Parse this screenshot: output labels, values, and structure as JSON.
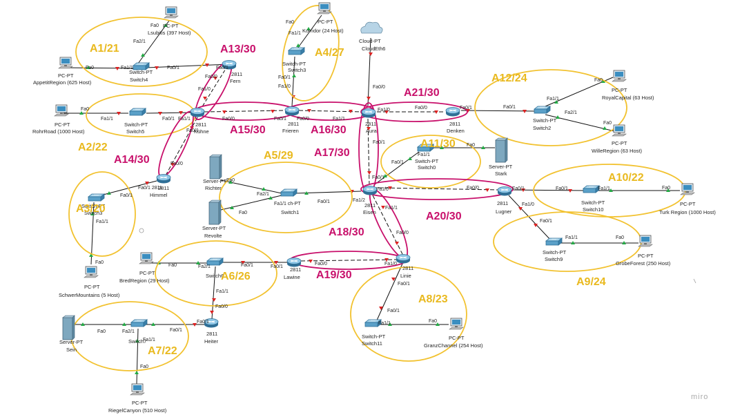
{
  "watermark": "miro",
  "colors": {
    "area_yellow": "#f2c230",
    "area_pink": "#c8106b",
    "area_label_yellow": "#e9b91e",
    "area_label_pink": "#c8106b",
    "link": "#111111",
    "port_up": "#22aa44",
    "port_down": "#dd2222"
  },
  "areas": [
    {
      "label": "A1/21"
    },
    {
      "label": "A2/22"
    },
    {
      "label": "A3/20"
    },
    {
      "label": "A4/27"
    },
    {
      "label": "A5/29"
    },
    {
      "label": "A6/26"
    },
    {
      "label": "A7/22"
    },
    {
      "label": "A8/23"
    },
    {
      "label": "A9/24"
    },
    {
      "label": "A10/22"
    },
    {
      "label": "A11/30"
    },
    {
      "label": "A12/24"
    },
    {
      "label": "A13/30"
    },
    {
      "label": "A14/30"
    },
    {
      "label": "A15/30"
    },
    {
      "label": "A16/30"
    },
    {
      "label": "A17/30"
    },
    {
      "label": "A18/30"
    },
    {
      "label": "A19/30"
    },
    {
      "label": "A20/30"
    },
    {
      "label": "A21/30"
    }
  ],
  "devices": {
    "fern": {
      "model": "2811",
      "name": "Fern",
      "icon": "router-icon"
    },
    "kuehne": {
      "model": "2811",
      "name": "Kühne",
      "icon": "router-icon"
    },
    "frieren": {
      "model": "2811",
      "name": "Frieren",
      "icon": "router-icon"
    },
    "aura": {
      "model": "2811",
      "name": "Aura",
      "icon": "router-icon"
    },
    "denken": {
      "model": "2811",
      "name": "Denken",
      "icon": "router-icon"
    },
    "himmel": {
      "model": "2811",
      "name": "Himmel",
      "icon": "router-icon"
    },
    "eisen": {
      "model": "2811",
      "name": "Eisen",
      "icon": "router-icon"
    },
    "lugner": {
      "model": "2811",
      "name": "Lugner",
      "icon": "router-icon"
    },
    "linie": {
      "model": "2811",
      "name": "Linie",
      "icon": "router-icon"
    },
    "lawine": {
      "model": "2811",
      "name": "Lawine",
      "icon": "router-icon"
    },
    "heiter": {
      "model": "2811",
      "name": "Heiter",
      "icon": "router-icon"
    },
    "switch0": {
      "type": "Switch-PT",
      "name": "Switch0",
      "icon": "switch-icon"
    },
    "switch1": {
      "type": "Switch-PT",
      "name": "Switch1",
      "icon": "switch-icon"
    },
    "switch2": {
      "type": "Switch-PT",
      "name": "Switch2",
      "icon": "switch-icon"
    },
    "switch3": {
      "type": "Switch-PT",
      "name": "Switch3",
      "icon": "switch-icon"
    },
    "switch3b": {
      "type": "Switch-PT",
      "name": "Switch3",
      "icon": "switch-icon"
    },
    "switch4": {
      "type": "Switch-PT",
      "name": "Switch4",
      "icon": "switch-icon"
    },
    "switch5": {
      "type": "Switch-PT",
      "name": "Switch5",
      "icon": "switch-icon"
    },
    "switch6": {
      "type": "Switch-PT",
      "name": "Switch6",
      "icon": "switch-icon"
    },
    "switch7": {
      "type": "Switch-PT",
      "name": "Switch7",
      "icon": "switch-icon"
    },
    "switch9": {
      "type": "Switch-PT",
      "name": "Switch9",
      "icon": "switch-icon"
    },
    "switch10": {
      "type": "Switch-PT",
      "name": "Switch10",
      "icon": "switch-icon"
    },
    "switch11": {
      "type": "Switch-PT",
      "name": "Switch11",
      "icon": "switch-icon"
    },
    "cloud": {
      "type": "Cloud-PT",
      "name": "Cloud",
      "port": "Eth6",
      "icon": "cloud-icon"
    },
    "pc_lsubitis": {
      "type": "PC-PT",
      "name": "Lsubitis (397 Host)",
      "icon": "pc-icon"
    },
    "pc_korridor": {
      "type": "PC-PT",
      "name": "Korridor (24 Host)",
      "icon": "pc-icon"
    },
    "pc_appetit": {
      "type": "PC-PT",
      "name": "AppetitRegion (625 Host)",
      "icon": "pc-icon"
    },
    "pc_rohr": {
      "type": "PC-PT",
      "name": "RohrRoad (1000 Host)",
      "icon": "pc-icon"
    },
    "pc_royal": {
      "type": "PC-PT",
      "name": "RoyalCapital (63 Host)",
      "icon": "pc-icon"
    },
    "pc_wille": {
      "type": "PC-PT",
      "name": "WilleRegion (63 Host)",
      "icon": "pc-icon"
    },
    "pc_schwer": {
      "type": "PC-PT",
      "name": "SchwerMountains (5 Host)",
      "icon": "pc-icon"
    },
    "pc_bred": {
      "type": "PC-PT",
      "name": "BredRegion (29 Host)",
      "icon": "pc-icon"
    },
    "pc_turk": {
      "type": "PC-PT",
      "name": "Turk Region (1000 Host)",
      "icon": "pc-icon"
    },
    "pc_grobe": {
      "type": "PC-PT",
      "name": "GrobeForest (250 Host)",
      "icon": "pc-icon"
    },
    "pc_granz": {
      "type": "PC-PT",
      "name": "GranzChannel (254 Host)",
      "icon": "pc-icon"
    },
    "pc_riegel": {
      "type": "PC-PT",
      "name": "RiegelCanyon (510 Host)",
      "icon": "pc-icon"
    },
    "srv_stark": {
      "type": "Server-PT",
      "name": "Stark",
      "icon": "server-icon"
    },
    "srv_richter": {
      "type": "Server-PT",
      "name": "Richter",
      "icon": "server-icon"
    },
    "srv_revolte": {
      "type": "Server-PT",
      "name": "Revolte",
      "icon": "server-icon"
    },
    "srv_sein": {
      "type": "Server-PT",
      "name": "Sein",
      "icon": "server-icon"
    }
  },
  "ports": {
    "fa0": "Fa0",
    "fa0_0": "Fa0/0",
    "fa0_1": "Fa0/1",
    "fa1_0": "Fa1/0",
    "fa1_1": "Fa1/1",
    "fa1_2": "Fa1/2",
    "fa2_1": "Fa2/1",
    "fa1_1_partial": "Fa1/1 ch-PT",
    "fa0_1_2811": "Fa0/1 2811",
    "fa0_1_fa1_1": "Fa0/1 Fa1/1"
  }
}
